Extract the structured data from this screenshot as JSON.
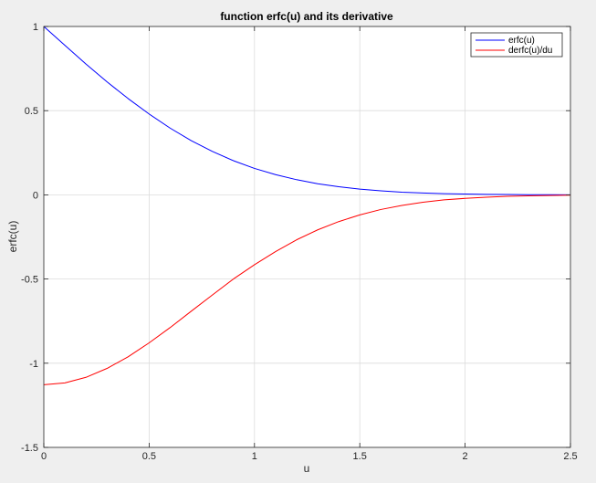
{
  "chart_data": {
    "type": "line",
    "title": "function erfc(u) and its derivative",
    "xlabel": "u",
    "ylabel": "erfc(u)",
    "xlim": [
      0,
      2.5
    ],
    "ylim": [
      -1.5,
      1
    ],
    "xticks": [
      0,
      0.5,
      1,
      1.5,
      2,
      2.5
    ],
    "xtick_labels": [
      "0",
      "0.5",
      "1",
      "1.5",
      "2",
      "2.5"
    ],
    "yticks": [
      -1.5,
      -1,
      -0.5,
      0,
      0.5,
      1
    ],
    "ytick_labels": [
      "-1.5",
      "-1",
      "-0.5",
      "0",
      "0.5",
      "1"
    ],
    "grid": true,
    "legend_position": "top-right",
    "x": [
      0,
      0.1,
      0.2,
      0.3,
      0.4,
      0.5,
      0.6,
      0.7,
      0.8,
      0.9,
      1.0,
      1.1,
      1.2,
      1.3,
      1.4,
      1.5,
      1.6,
      1.7,
      1.8,
      1.9,
      2.0,
      2.1,
      2.2,
      2.3,
      2.4,
      2.5
    ],
    "series": [
      {
        "name": "erfc(u)",
        "color": "#0000ff",
        "values": [
          1.0,
          0.888,
          0.777,
          0.671,
          0.572,
          0.48,
          0.396,
          0.322,
          0.258,
          0.203,
          0.157,
          0.12,
          0.09,
          0.066,
          0.048,
          0.034,
          0.024,
          0.016,
          0.011,
          0.007,
          0.005,
          0.003,
          0.002,
          0.001,
          0.001,
          0.0
        ]
      },
      {
        "name": "derfc(u)/du",
        "color": "#ff0000",
        "values": [
          -1.128,
          -1.117,
          -1.084,
          -1.031,
          -0.962,
          -0.879,
          -0.788,
          -0.691,
          -0.595,
          -0.5,
          -0.415,
          -0.337,
          -0.267,
          -0.208,
          -0.159,
          -0.119,
          -0.087,
          -0.063,
          -0.044,
          -0.03,
          -0.021,
          -0.014,
          -0.009,
          -0.006,
          -0.004,
          -0.002
        ]
      }
    ]
  }
}
